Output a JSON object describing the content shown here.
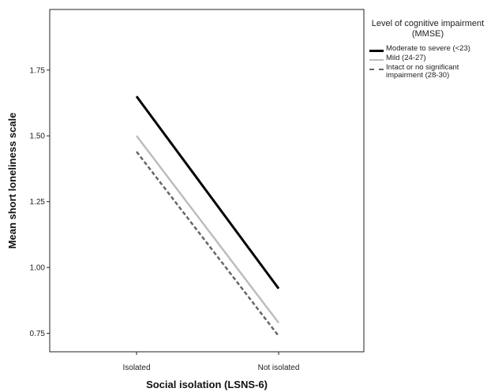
{
  "chart_data": {
    "type": "line",
    "title": "",
    "xlabel": "Social isolation (LSNS-6)",
    "ylabel": "Mean short loneliness scale",
    "categories": [
      "Isolated",
      "Not isolated"
    ],
    "ylim": [
      0.68,
      1.98
    ],
    "yticks": [
      "0.75",
      "1.00",
      "1.25",
      "1.50",
      "1.75"
    ],
    "grid": false,
    "legend": {
      "title": "Level of cognitive impairment (MMSE)",
      "placement": "right"
    },
    "series": [
      {
        "name": "Moderate to severe (<23)",
        "values": [
          1.65,
          0.92
        ],
        "color": "#000000",
        "style": "solid"
      },
      {
        "name": "Mild (24-27)",
        "values": [
          1.5,
          0.79
        ],
        "color": "#bdbdbd",
        "style": "solid"
      },
      {
        "name": "Intact or no significant impairment (28-30)",
        "values": [
          1.44,
          0.74
        ],
        "color": "#666666",
        "style": "dashed"
      }
    ]
  }
}
